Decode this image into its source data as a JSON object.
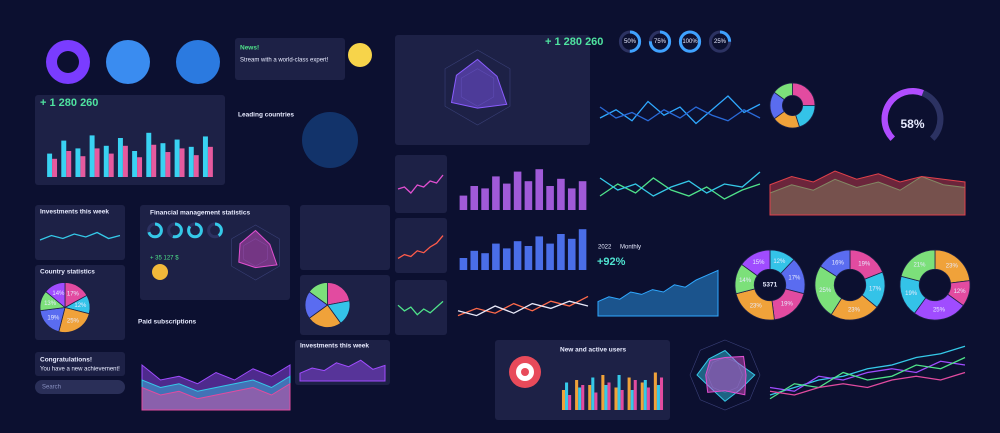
{
  "widgets": {
    "summary_1": {
      "value": "+ 1 280 260"
    },
    "news": {
      "title": "News!",
      "text": "Stream with a world-class expert!"
    },
    "leading": {
      "title": "Leading countries"
    },
    "summary_2": {
      "value": "+ 1 280 260"
    },
    "investments_1": {
      "title": "Investments this week"
    },
    "finance": {
      "title": "Financial management statistics",
      "amount": "+ 35 127 $"
    },
    "country": {
      "title": "Country statistics"
    },
    "paid": {
      "title": "Paid subscriptions"
    },
    "achievement": {
      "title": "Congratulations!",
      "text": "You have a new achievement!"
    },
    "search": {
      "placeholder": "Search"
    },
    "investments_2": {
      "title": "Investments this week"
    },
    "users": {
      "title": "New and active users"
    },
    "growth": {
      "value": "+92%",
      "year": "2022",
      "period": "Monthly"
    },
    "donut_total": "5371"
  },
  "charts": [
    {
      "type": "bar",
      "ylim": [
        0,
        100
      ],
      "series": [
        {
          "color": "#39d2f2",
          "values": [
            45,
            70,
            55,
            80,
            60,
            75,
            50,
            85,
            65,
            72,
            58,
            78
          ]
        },
        {
          "color": "#e65a9e",
          "values": [
            35,
            50,
            40,
            55,
            45,
            60,
            38,
            62,
            48,
            55,
            42,
            58
          ]
        }
      ]
    },
    {
      "type": "ring",
      "color": "#3fa2ff",
      "values": [
        50,
        75,
        100,
        25
      ],
      "value_labels": [
        "50%",
        "75%",
        "100%",
        "25%"
      ]
    },
    {
      "type": "line",
      "ylim": [
        0,
        100
      ],
      "series": [
        {
          "color": "#2fa8ff",
          "values": [
            40,
            55,
            35,
            70,
            45,
            60,
            30,
            55,
            80,
            50,
            65
          ]
        },
        {
          "color": "#2a6ad8",
          "values": [
            60,
            40,
            50,
            35,
            55,
            40,
            60,
            45,
            35,
            55,
            40
          ]
        }
      ]
    },
    {
      "type": "donut",
      "colors": [
        "#e24ba0",
        "#34c3e8",
        "#f0a23a",
        "#5a6cf0",
        "#7ce07a"
      ],
      "values": [
        25,
        20,
        20,
        20,
        15
      ]
    },
    {
      "type": "gauge",
      "color": "#b04cff",
      "value": 58,
      "value_label": "58%"
    },
    {
      "type": "line",
      "ylim": [
        0,
        100
      ],
      "series": [
        {
          "color": "#e04fd0",
          "values": [
            40,
            45,
            30,
            50,
            45,
            60,
            55,
            75
          ]
        }
      ]
    },
    {
      "type": "line",
      "ylim": [
        0,
        100
      ],
      "series": [
        {
          "color": "#ff5b4a",
          "values": [
            20,
            30,
            25,
            40,
            35,
            50,
            60,
            80
          ]
        }
      ]
    },
    {
      "type": "line",
      "ylim": [
        0,
        100
      ],
      "series": [
        {
          "color": "#4fe38a",
          "values": [
            60,
            45,
            55,
            35,
            50,
            40,
            55,
            70
          ]
        }
      ]
    },
    {
      "type": "bar",
      "ylim": [
        0,
        100
      ],
      "series": [
        {
          "color": "#a05ad8",
          "values": [
            30,
            50,
            45,
            70,
            55,
            80,
            60,
            85,
            50,
            65,
            45,
            60
          ]
        }
      ]
    },
    {
      "type": "bar",
      "ylim": [
        0,
        100
      ],
      "series": [
        {
          "color": "#4a6ee8",
          "values": [
            25,
            40,
            35,
            55,
            45,
            60,
            50,
            70,
            55,
            75,
            65,
            85
          ]
        }
      ]
    },
    {
      "type": "line",
      "ylim": [
        0,
        100
      ],
      "series": [
        {
          "color": "#ff6a4a",
          "values": [
            30,
            45,
            35,
            55,
            40,
            60,
            50,
            70
          ]
        },
        {
          "color": "#e8e8f8",
          "values": [
            40,
            30,
            50,
            35,
            55,
            45,
            60,
            50
          ]
        }
      ]
    },
    {
      "type": "line",
      "ylim": [
        0,
        100
      ],
      "series": [
        {
          "color": "#4fe38a",
          "values": [
            40,
            60,
            45,
            70,
            50,
            40,
            55,
            35,
            50,
            60
          ]
        },
        {
          "color": "#35c9e8",
          "values": [
            70,
            50,
            60,
            40,
            55,
            65,
            45,
            60,
            55,
            80
          ]
        }
      ]
    },
    {
      "type": "area",
      "ylim": [
        0,
        100
      ],
      "series": [
        {
          "color": "#37c47a",
          "values": [
            40,
            55,
            45,
            65,
            50,
            60,
            45,
            70,
            55,
            50
          ]
        },
        {
          "color": "#e0404a",
          "values": [
            55,
            70,
            60,
            80,
            65,
            75,
            60,
            70,
            65,
            60
          ]
        }
      ]
    },
    {
      "type": "line",
      "ylim": [
        0,
        100
      ],
      "series": [
        {
          "color": "#35c9e8",
          "values": [
            40,
            55,
            45,
            60,
            50,
            65,
            45,
            55
          ]
        }
      ]
    },
    {
      "type": "ring",
      "color": "#35c9e8",
      "values": [
        70,
        55,
        85,
        40
      ]
    },
    {
      "type": "radar",
      "ylim": [
        0,
        100
      ],
      "series": [
        {
          "color": "#e04fd0",
          "values": [
            80,
            60,
            90,
            55,
            70,
            65
          ]
        }
      ]
    },
    {
      "type": "pie",
      "colors": [
        "#e24ba0",
        "#34c3e8",
        "#f0a23a",
        "#5a6cf0",
        "#7ce07a",
        "#a04cff"
      ],
      "values": [
        17,
        12,
        25,
        19,
        13,
        14
      ],
      "value_labels": [
        "17%",
        "12%",
        "25%",
        "19%",
        "13%",
        "14%"
      ]
    },
    {
      "type": "pie",
      "colors": [
        "#e24ba0",
        "#34c3e8",
        "#f0a23a",
        "#5a6cf0",
        "#7ce07a"
      ],
      "values": [
        22,
        18,
        25,
        20,
        15
      ]
    },
    {
      "type": "area",
      "ylim": [
        0,
        100
      ],
      "series": [
        {
          "color": "#2fa8ff",
          "values": [
            30,
            40,
            35,
            50,
            45,
            55,
            50,
            65,
            60,
            75,
            85,
            95
          ]
        }
      ]
    },
    {
      "type": "donut",
      "colors": [
        "#34c3e8",
        "#5a6cf0",
        "#e24ba0",
        "#f0a23a",
        "#7ce07a",
        "#a04cff"
      ],
      "values": [
        12,
        17,
        19,
        23,
        14,
        15
      ],
      "value_labels": [
        "12%",
        "17%",
        "19%",
        "23%",
        "14%",
        "15%"
      ]
    },
    {
      "type": "donut",
      "colors": [
        "#e24ba0",
        "#34c3e8",
        "#f0a23a",
        "#7ce07a",
        "#5a6cf0"
      ],
      "values": [
        19,
        17,
        23,
        25,
        16
      ],
      "value_labels": [
        "19%",
        "17%",
        "23%",
        "25%",
        "16%"
      ]
    },
    {
      "type": "donut",
      "colors": [
        "#f0a23a",
        "#e24ba0",
        "#a04cff",
        "#34c3e8",
        "#7ce07a"
      ],
      "values": [
        23,
        12,
        25,
        19,
        21
      ],
      "value_labels": [
        "23%",
        "12%",
        "25%",
        "19%",
        "21%"
      ]
    },
    {
      "type": "area",
      "ylim": [
        0,
        100
      ],
      "series": [
        {
          "color": "#a04cff",
          "values": [
            60,
            40,
            45,
            35,
            50,
            40,
            55,
            45,
            60
          ]
        },
        {
          "color": "#35c9e8",
          "values": [
            40,
            30,
            35,
            25,
            30,
            35,
            40,
            30,
            45
          ]
        },
        {
          "color": "#e24ba0",
          "values": [
            30,
            20,
            25,
            15,
            20,
            25,
            30,
            20,
            35
          ]
        }
      ]
    },
    {
      "type": "area",
      "ylim": [
        0,
        100
      ],
      "series": [
        {
          "color": "#a04cff",
          "values": [
            30,
            50,
            40,
            70,
            55,
            80,
            45,
            60
          ]
        }
      ]
    },
    {
      "type": "bar",
      "ylim": [
        0,
        100
      ],
      "series": [
        {
          "color": "#f0a23a",
          "values": [
            40,
            60,
            50,
            70,
            45,
            65,
            55,
            75
          ]
        },
        {
          "color": "#35c9e8",
          "values": [
            55,
            45,
            65,
            50,
            70,
            40,
            60,
            50
          ]
        },
        {
          "color": "#e24ba0",
          "values": [
            30,
            50,
            35,
            55,
            40,
            60,
            45,
            65
          ]
        }
      ]
    },
    {
      "type": "radar",
      "ylim": [
        0,
        100
      ],
      "series": [
        {
          "color": "#35c9e8",
          "values": [
            70,
            50,
            85,
            60,
            75,
            55,
            80,
            65
          ]
        },
        {
          "color": "#e04fd0",
          "values": [
            50,
            75,
            60,
            80,
            45,
            70,
            55,
            60
          ]
        }
      ]
    },
    {
      "type": "line",
      "ylim": [
        0,
        100
      ],
      "series": [
        {
          "color": "#35c9e8",
          "values": [
            20,
            30,
            40,
            45,
            55,
            60,
            70,
            75,
            85
          ]
        },
        {
          "color": "#a04cff",
          "values": [
            30,
            25,
            45,
            40,
            50,
            55,
            50,
            65,
            60
          ]
        },
        {
          "color": "#4fe38a",
          "values": [
            15,
            35,
            30,
            50,
            40,
            45,
            60,
            55,
            70
          ]
        },
        {
          "color": "#e24ba0",
          "values": [
            25,
            20,
            30,
            35,
            30,
            40,
            45,
            40,
            50
          ]
        }
      ]
    },
    {
      "type": "radar",
      "ylim": [
        0,
        100
      ],
      "series": [
        {
          "color": "#8a5cff",
          "values": [
            75,
            60,
            90,
            55,
            80,
            65
          ]
        }
      ]
    }
  ]
}
